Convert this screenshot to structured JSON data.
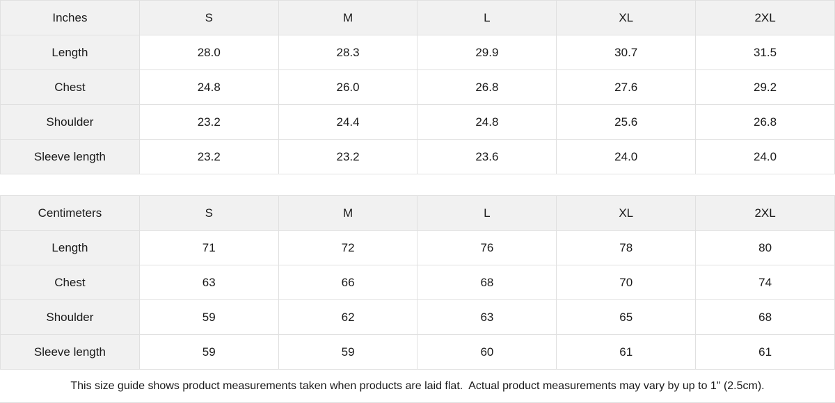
{
  "colors": {
    "header_bg": "#f1f1f1",
    "border": "#e0e0e0",
    "text": "#1a1a1a",
    "background": "#ffffff"
  },
  "tables": [
    {
      "unit_label": "Inches",
      "columns": [
        "S",
        "M",
        "L",
        "XL",
        "2XL"
      ],
      "rows": [
        {
          "label": "Length",
          "values": [
            "28.0",
            "28.3",
            "29.9",
            "30.7",
            "31.5"
          ]
        },
        {
          "label": "Chest",
          "values": [
            "24.8",
            "26.0",
            "26.8",
            "27.6",
            "29.2"
          ]
        },
        {
          "label": "Shoulder",
          "values": [
            "23.2",
            "24.4",
            "24.8",
            "25.6",
            "26.8"
          ]
        },
        {
          "label": "Sleeve length",
          "values": [
            "23.2",
            "23.2",
            "23.6",
            "24.0",
            "24.0"
          ]
        }
      ]
    },
    {
      "unit_label": "Centimeters",
      "columns": [
        "S",
        "M",
        "L",
        "XL",
        "2XL"
      ],
      "rows": [
        {
          "label": "Length",
          "values": [
            "71",
            "72",
            "76",
            "78",
            "80"
          ]
        },
        {
          "label": "Chest",
          "values": [
            "63",
            "66",
            "68",
            "70",
            "74"
          ]
        },
        {
          "label": "Shoulder",
          "values": [
            "59",
            "62",
            "63",
            "65",
            "68"
          ]
        },
        {
          "label": "Sleeve length",
          "values": [
            "59",
            "59",
            "60",
            "61",
            "61"
          ]
        }
      ]
    }
  ],
  "footer": {
    "note": "This size guide shows product measurements taken when products are laid flat.  Actual product measurements may vary by up to 1\" (2.5cm)."
  }
}
